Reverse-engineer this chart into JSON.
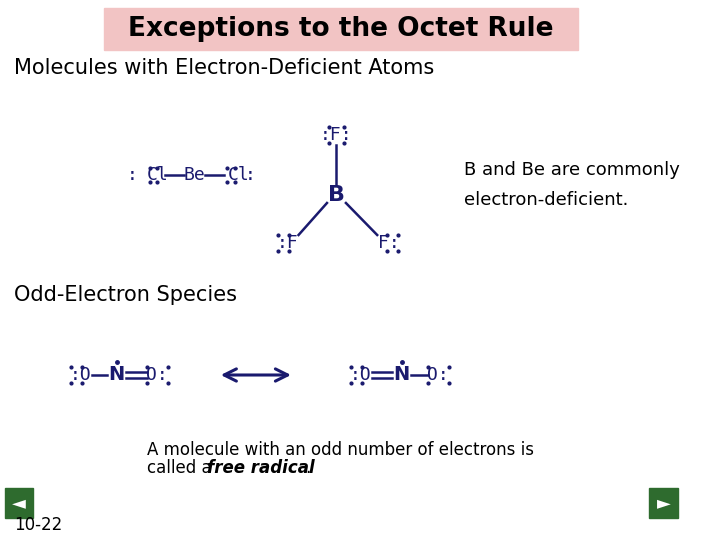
{
  "title": "Exceptions to the Octet Rule",
  "title_bg_color": "#f2c4c4",
  "title_fontsize": 19,
  "subtitle1": "Molecules with Electron-Deficient Atoms",
  "subtitle2": "Odd-Electron Species",
  "subtitle_fontsize": 15,
  "body_fontsize": 12,
  "molecule_color": "#1a1a6e",
  "text_color": "#000000",
  "annotation_text": "B and Be are commonly\nelectron-deficient.",
  "bottom_text1": "A molecule with an odd number of electrons is",
  "bottom_text2_pre": "called a ",
  "bottom_text2_bold": "free radical",
  "bottom_text2_end": ".",
  "slide_number": "10-22",
  "nav_color": "#2e6b2e",
  "background_color": "#ffffff"
}
